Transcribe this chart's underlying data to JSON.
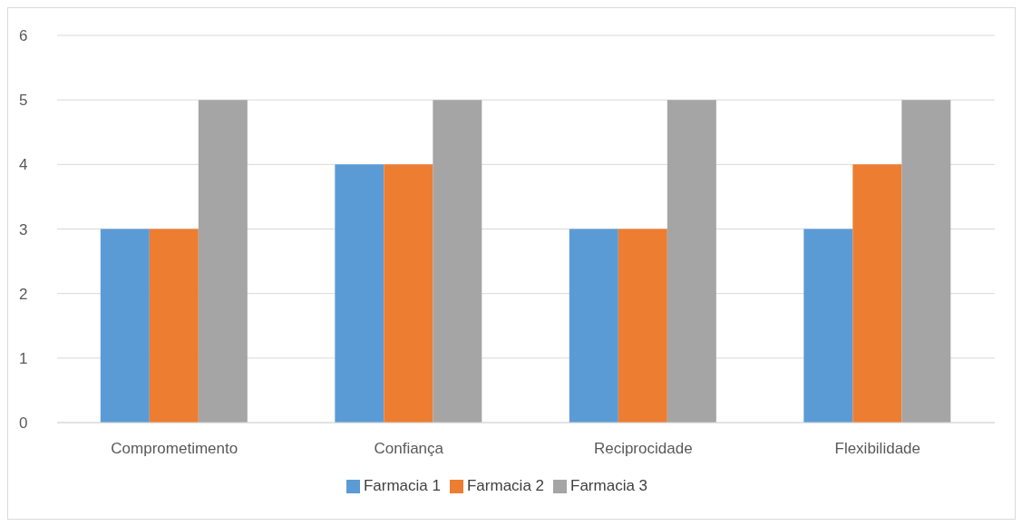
{
  "chart_data": {
    "type": "bar",
    "categories": [
      "Comprometimento",
      "Confiança",
      "Reciprocidade",
      "Flexibilidade"
    ],
    "series": [
      {
        "name": "Farmacia 1",
        "color": "#5b9bd5",
        "values": [
          3,
          4,
          3,
          3
        ]
      },
      {
        "name": "Farmacia 2",
        "color": "#ed7d31",
        "values": [
          3,
          4,
          3,
          4
        ]
      },
      {
        "name": "Farmacia 3",
        "color": "#a5a5a5",
        "values": [
          5,
          5,
          5,
          5
        ]
      }
    ],
    "ylim": [
      0,
      6
    ],
    "yticks": [
      0,
      1,
      2,
      3,
      4,
      5,
      6
    ],
    "grid": "y",
    "legend": "bottom"
  }
}
